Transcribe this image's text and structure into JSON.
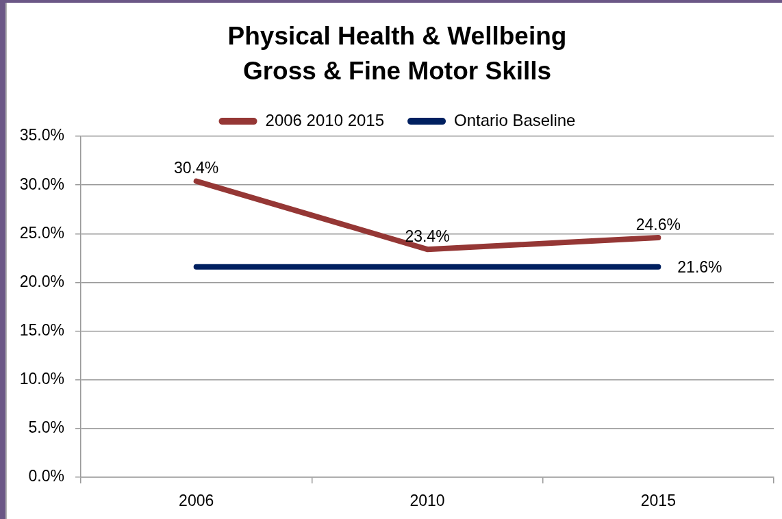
{
  "chart_data": {
    "type": "line",
    "title": "Physical Health & Wellbeing\nGross & Fine Motor Skills",
    "categories": [
      "2006",
      "2010",
      "2015"
    ],
    "series": [
      {
        "name": "2006 2010 2015",
        "color": "#953735",
        "values": [
          30.4,
          23.4,
          24.6
        ],
        "value_labels": [
          "30.4%",
          "23.4%",
          "24.6%"
        ]
      },
      {
        "name": "Ontario Baseline",
        "color": "#002060",
        "values": [
          21.6,
          21.6,
          21.6
        ],
        "value_labels": [
          null,
          null,
          "21.6%"
        ]
      }
    ],
    "ylim": [
      0,
      35
    ],
    "yticks": [
      {
        "value": 0,
        "label": "0.0%"
      },
      {
        "value": 5,
        "label": "5.0%"
      },
      {
        "value": 10,
        "label": "10.0%"
      },
      {
        "value": 15,
        "label": "15.0%"
      },
      {
        "value": 20,
        "label": "20.0%"
      },
      {
        "value": 25,
        "label": "25.0%"
      },
      {
        "value": 30,
        "label": "30.0%"
      },
      {
        "value": 35,
        "label": "35.0%"
      }
    ],
    "grid": "y",
    "legend": "top",
    "marker": "none"
  }
}
